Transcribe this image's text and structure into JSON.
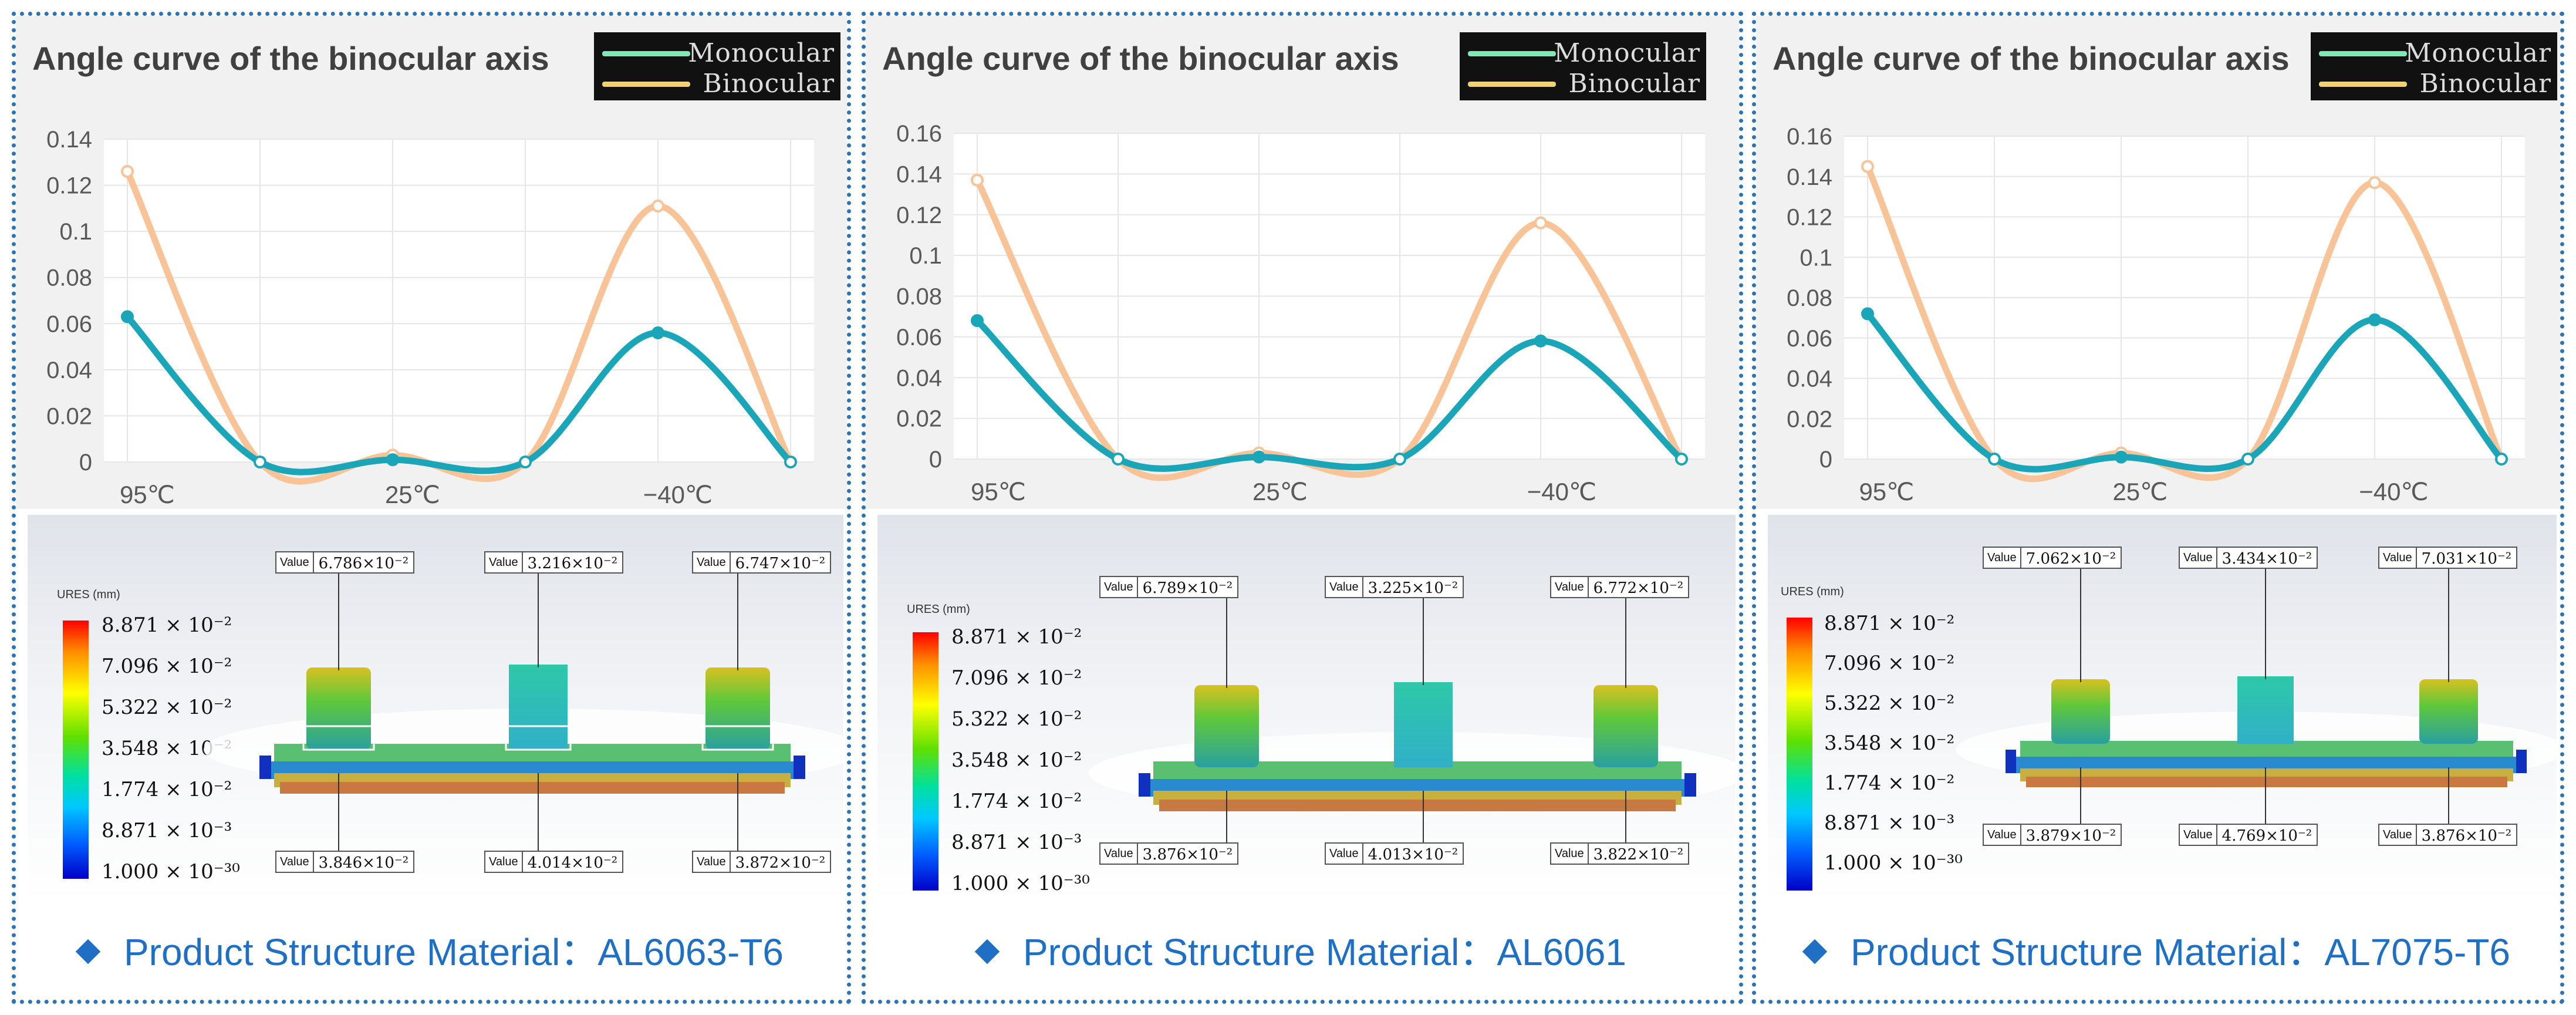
{
  "colors": {
    "monocular": "#1aa5b8",
    "binocular": "#f7c397",
    "border": "#2e74b5",
    "footer_text": "#1f6fc5"
  },
  "legend": {
    "monocular": "Monocular",
    "binocular": "Binocular"
  },
  "colorbar": {
    "unit": "URES (mm)",
    "labels": [
      "8.871 × 10⁻²",
      "7.096 × 10⁻²",
      "5.322 × 10⁻²",
      "3.548 × 10⁻²",
      "1.774 × 10⁻²",
      "8.871 × 10⁻³",
      "1.000 × 10⁻³⁰"
    ]
  },
  "value_tag": "Value",
  "panels": [
    {
      "title": "Angle curve of the binocular axis",
      "material_label": "Product Structure Material：AL6063-T6",
      "values_top": [
        "6.786×10⁻²",
        "3.216×10⁻²",
        "6.747×10⁻²"
      ],
      "values_bottom": [
        "3.846×10⁻²",
        "4.014×10⁻²",
        "3.872×10⁻²"
      ]
    },
    {
      "title": "Angle curve of the binocular axis",
      "material_label": "Product Structure Material：AL6061",
      "values_top": [
        "6.789×10⁻²",
        "3.225×10⁻²",
        "6.772×10⁻²"
      ],
      "values_bottom": [
        "3.876×10⁻²",
        "4.013×10⁻²",
        "3.822×10⁻²"
      ]
    },
    {
      "title": "Angle curve of the binocular axis",
      "material_label": "Product Structure Material：AL7075-T6",
      "values_top": [
        "7.062×10⁻²",
        "3.434×10⁻²",
        "7.031×10⁻²"
      ],
      "values_bottom": [
        "3.879×10⁻²",
        "4.769×10⁻²",
        "3.876×10⁻²"
      ]
    }
  ],
  "chart_data": [
    {
      "type": "line",
      "title": "Angle curve of the binocular axis",
      "categories": [
        "95℃",
        "25℃",
        "−40℃"
      ],
      "x": [
        0,
        1,
        2,
        3,
        4,
        5
      ],
      "ylim": [
        0,
        0.14
      ],
      "yticks": [
        "0",
        "0.02",
        "0.04",
        "0.06",
        "0.08",
        "0.1",
        "0.12",
        "0.14"
      ],
      "series": [
        {
          "name": "Monocular",
          "values": [
            0.063,
            0,
            0.001,
            0,
            0.056,
            0
          ]
        },
        {
          "name": "Binocular",
          "values": [
            0.126,
            0,
            0.003,
            0,
            0.111,
            0
          ]
        }
      ]
    },
    {
      "type": "line",
      "title": "Angle curve of the binocular axis",
      "categories": [
        "95℃",
        "25℃",
        "−40℃"
      ],
      "x": [
        0,
        1,
        2,
        3,
        4,
        5
      ],
      "ylim": [
        0,
        0.16
      ],
      "yticks": [
        "0",
        "0.02",
        "0.04",
        "0.06",
        "0.08",
        "0.1",
        "0.12",
        "0.14",
        "0.16"
      ],
      "series": [
        {
          "name": "Monocular",
          "values": [
            0.068,
            0,
            0.001,
            0,
            0.058,
            0
          ]
        },
        {
          "name": "Binocular",
          "values": [
            0.137,
            0,
            0.003,
            0,
            0.116,
            0
          ]
        }
      ]
    },
    {
      "type": "line",
      "title": "Angle curve of the binocular axis",
      "categories": [
        "95℃",
        "25℃",
        "−40℃"
      ],
      "x": [
        0,
        1,
        2,
        3,
        4,
        5
      ],
      "ylim": [
        0,
        0.16
      ],
      "yticks": [
        "0",
        "0.02",
        "0.04",
        "0.06",
        "0.08",
        "0.1",
        "0.12",
        "0.14",
        "0.16"
      ],
      "series": [
        {
          "name": "Monocular",
          "values": [
            0.072,
            0,
            0.001,
            0,
            0.069,
            0
          ]
        },
        {
          "name": "Binocular",
          "values": [
            0.145,
            0,
            0.003,
            0,
            0.137,
            0
          ]
        }
      ]
    }
  ]
}
